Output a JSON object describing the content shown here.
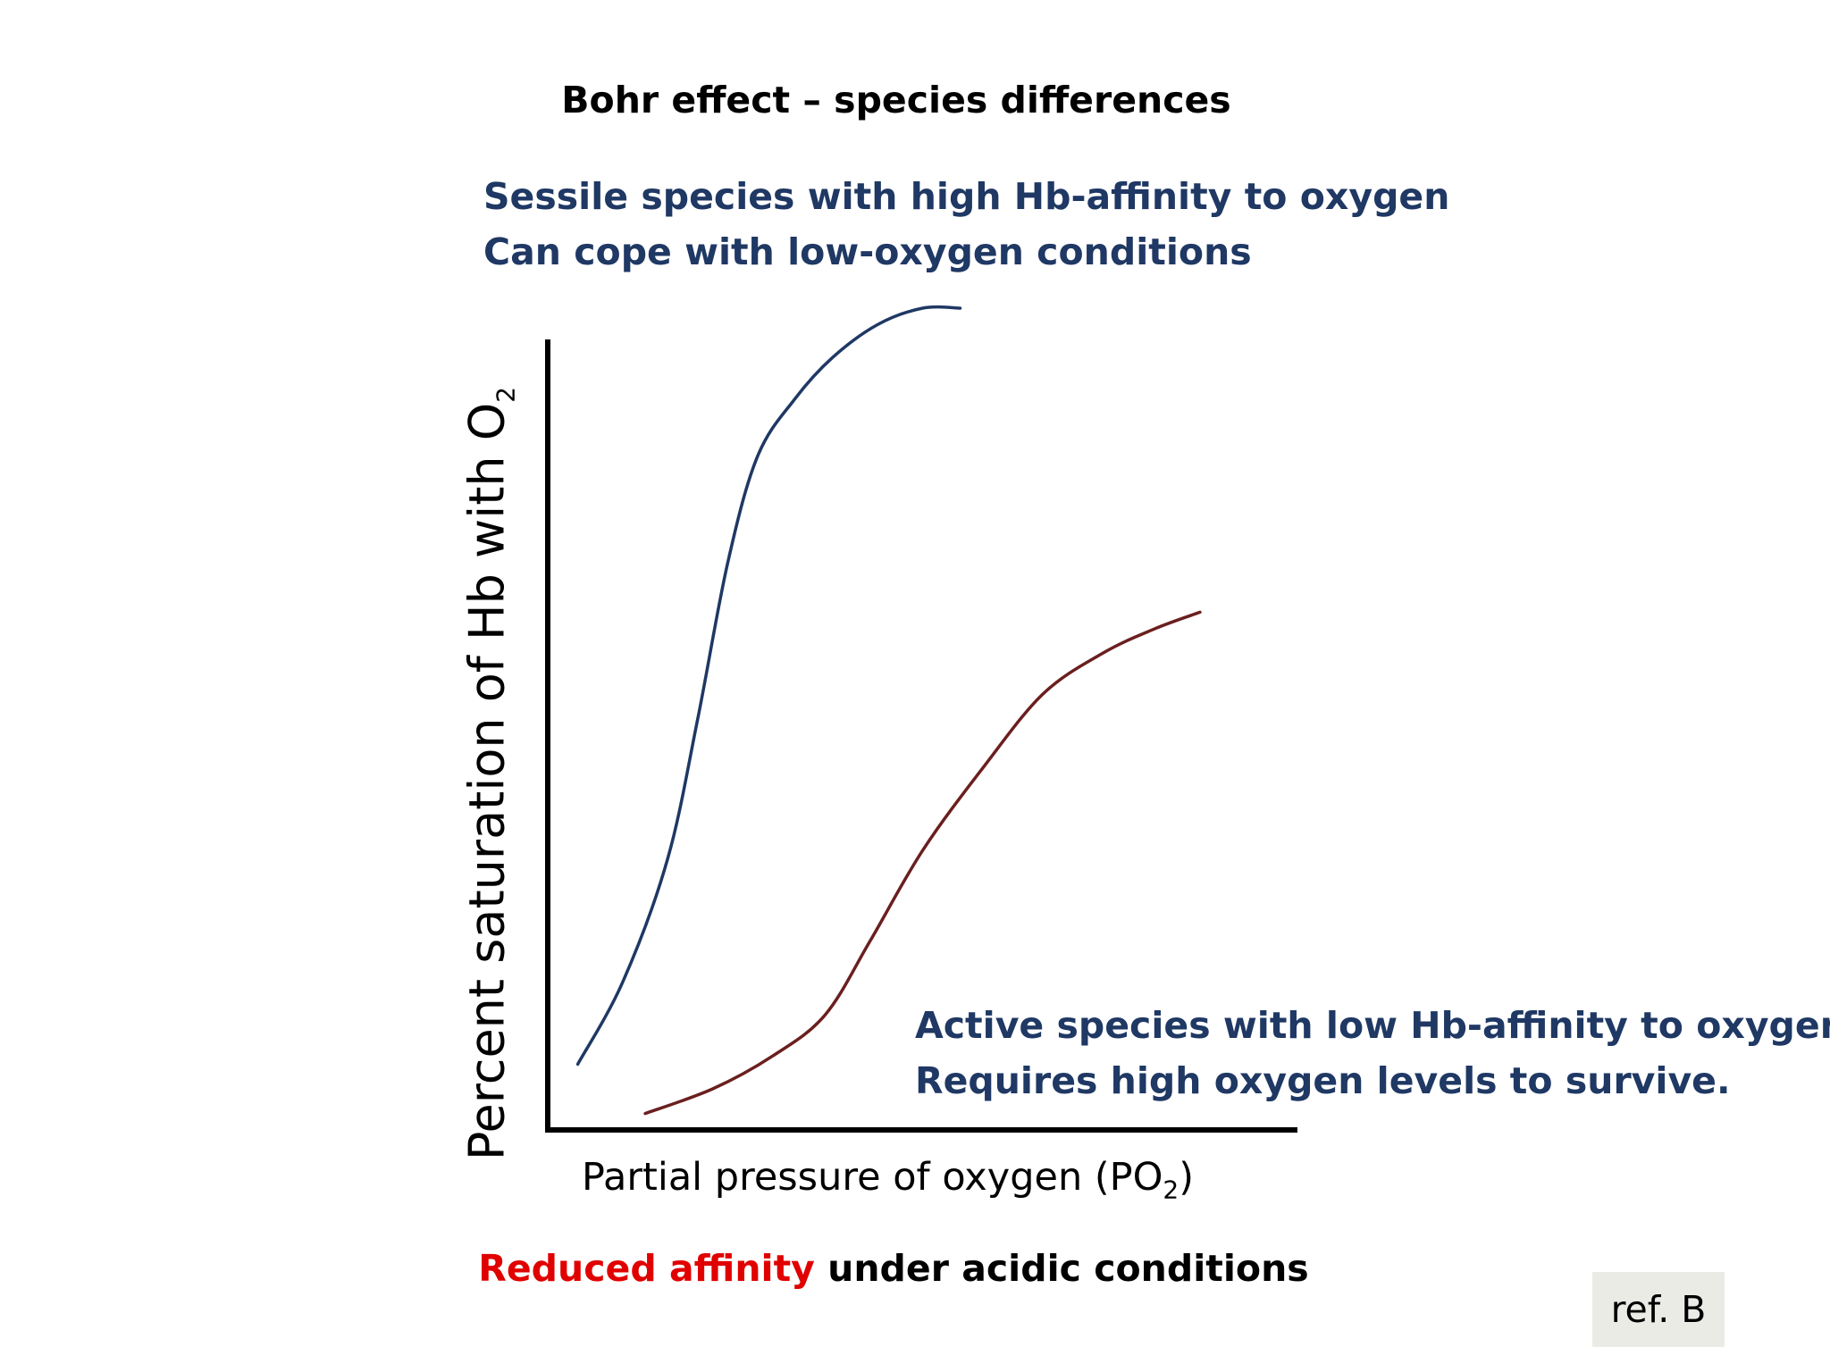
{
  "slide": {
    "title": "Bohr effect – species differences",
    "annotation_top": [
      "Sessile species with high Hb-affinity to oxygen",
      "Can cope with low-oxygen conditions"
    ],
    "annotation_bottom": [
      "Active species with low Hb-affinity to oxygen",
      "Requires high oxygen levels to survive."
    ],
    "footer": {
      "highlight": "Reduced affinity",
      "rest": " under acidic conditions"
    },
    "ref": "ref. B"
  },
  "chart_data": {
    "type": "line",
    "title": "",
    "xlabel": {
      "main": "Partial pressure of oxygen (PO",
      "sub": "2",
      "tail": ")"
    },
    "ylabel": {
      "main": "Percent saturation of Hb with O",
      "sub": "2"
    },
    "xlim": [
      0,
      100
    ],
    "ylim": [
      0,
      100
    ],
    "grid": false,
    "ticks": false,
    "series": [
      {
        "name": "Sessile species (high Hb-affinity)",
        "color": "#1f3864",
        "x": [
          4,
          10,
          16,
          20,
          24,
          28,
          33,
          38,
          44,
          50,
          55
        ],
        "y": [
          8,
          18,
          33,
          50,
          69,
          82,
          89,
          94,
          98,
          100,
          100
        ]
      },
      {
        "name": "Active species (low Hb-affinity)",
        "color": "#6b1f1f",
        "x": [
          13,
          22,
          30,
          37,
          43,
          50,
          58,
          66,
          74,
          81,
          87
        ],
        "y": [
          2,
          5,
          9,
          14,
          23,
          34,
          44,
          53,
          58,
          61,
          63
        ]
      }
    ]
  }
}
